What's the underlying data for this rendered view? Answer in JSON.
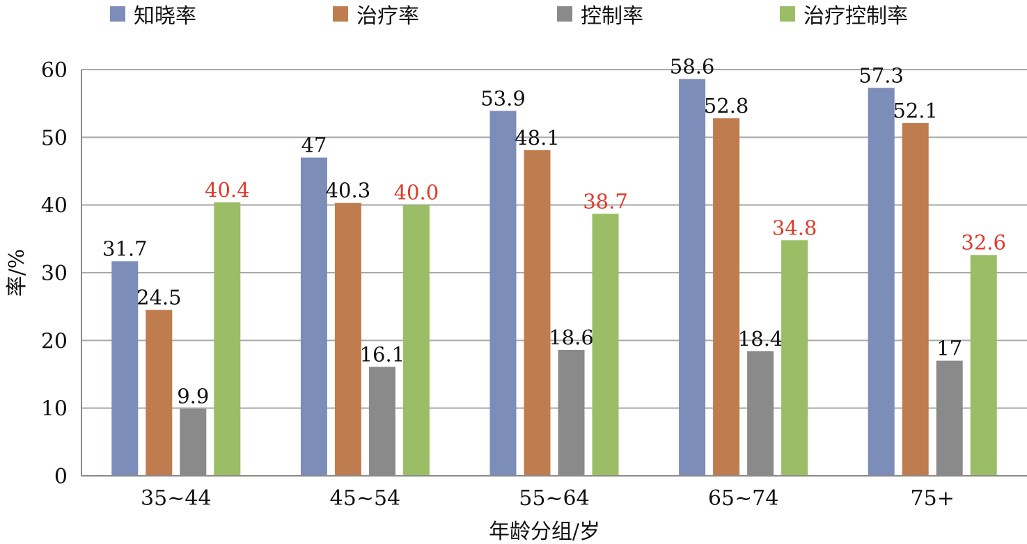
{
  "chart_data": {
    "type": "bar",
    "categories": [
      "35~44",
      "45~54",
      "55~64",
      "65~74",
      "75+"
    ],
    "series": [
      {
        "name": "知晓率",
        "values": [
          31.7,
          47,
          53.9,
          58.6,
          57.3
        ],
        "labels": [
          "31.7",
          "47",
          "53.9",
          "58.6",
          "57.3"
        ],
        "color": "#7b8db8",
        "label_color": "#111111"
      },
      {
        "name": "治疗率",
        "values": [
          24.5,
          40.3,
          48.1,
          52.8,
          52.1
        ],
        "labels": [
          "24.5",
          "40.3",
          "48.1",
          "52.8",
          "52.1"
        ],
        "color": "#bf7c4e",
        "label_color": "#111111"
      },
      {
        "name": "控制率",
        "values": [
          9.9,
          16.1,
          18.6,
          18.4,
          17
        ],
        "labels": [
          "9.9",
          "16.1",
          "18.6",
          "18.4",
          "17"
        ],
        "color": "#8a8a8a",
        "label_color": "#111111"
      },
      {
        "name": "治疗控制率",
        "values": [
          40.4,
          40.0,
          38.7,
          34.8,
          32.6
        ],
        "labels": [
          "40.4",
          "40.0",
          "38.7",
          "34.8",
          "32.6"
        ],
        "color": "#9bbd65",
        "label_color": "#e2392b"
      }
    ],
    "xlabel": "年龄分组/岁",
    "ylabel": "率/%",
    "ylim": [
      0,
      60
    ],
    "yticks": [
      0,
      10,
      20,
      30,
      40,
      50,
      60
    ],
    "grid": true,
    "legend_position": "top"
  }
}
